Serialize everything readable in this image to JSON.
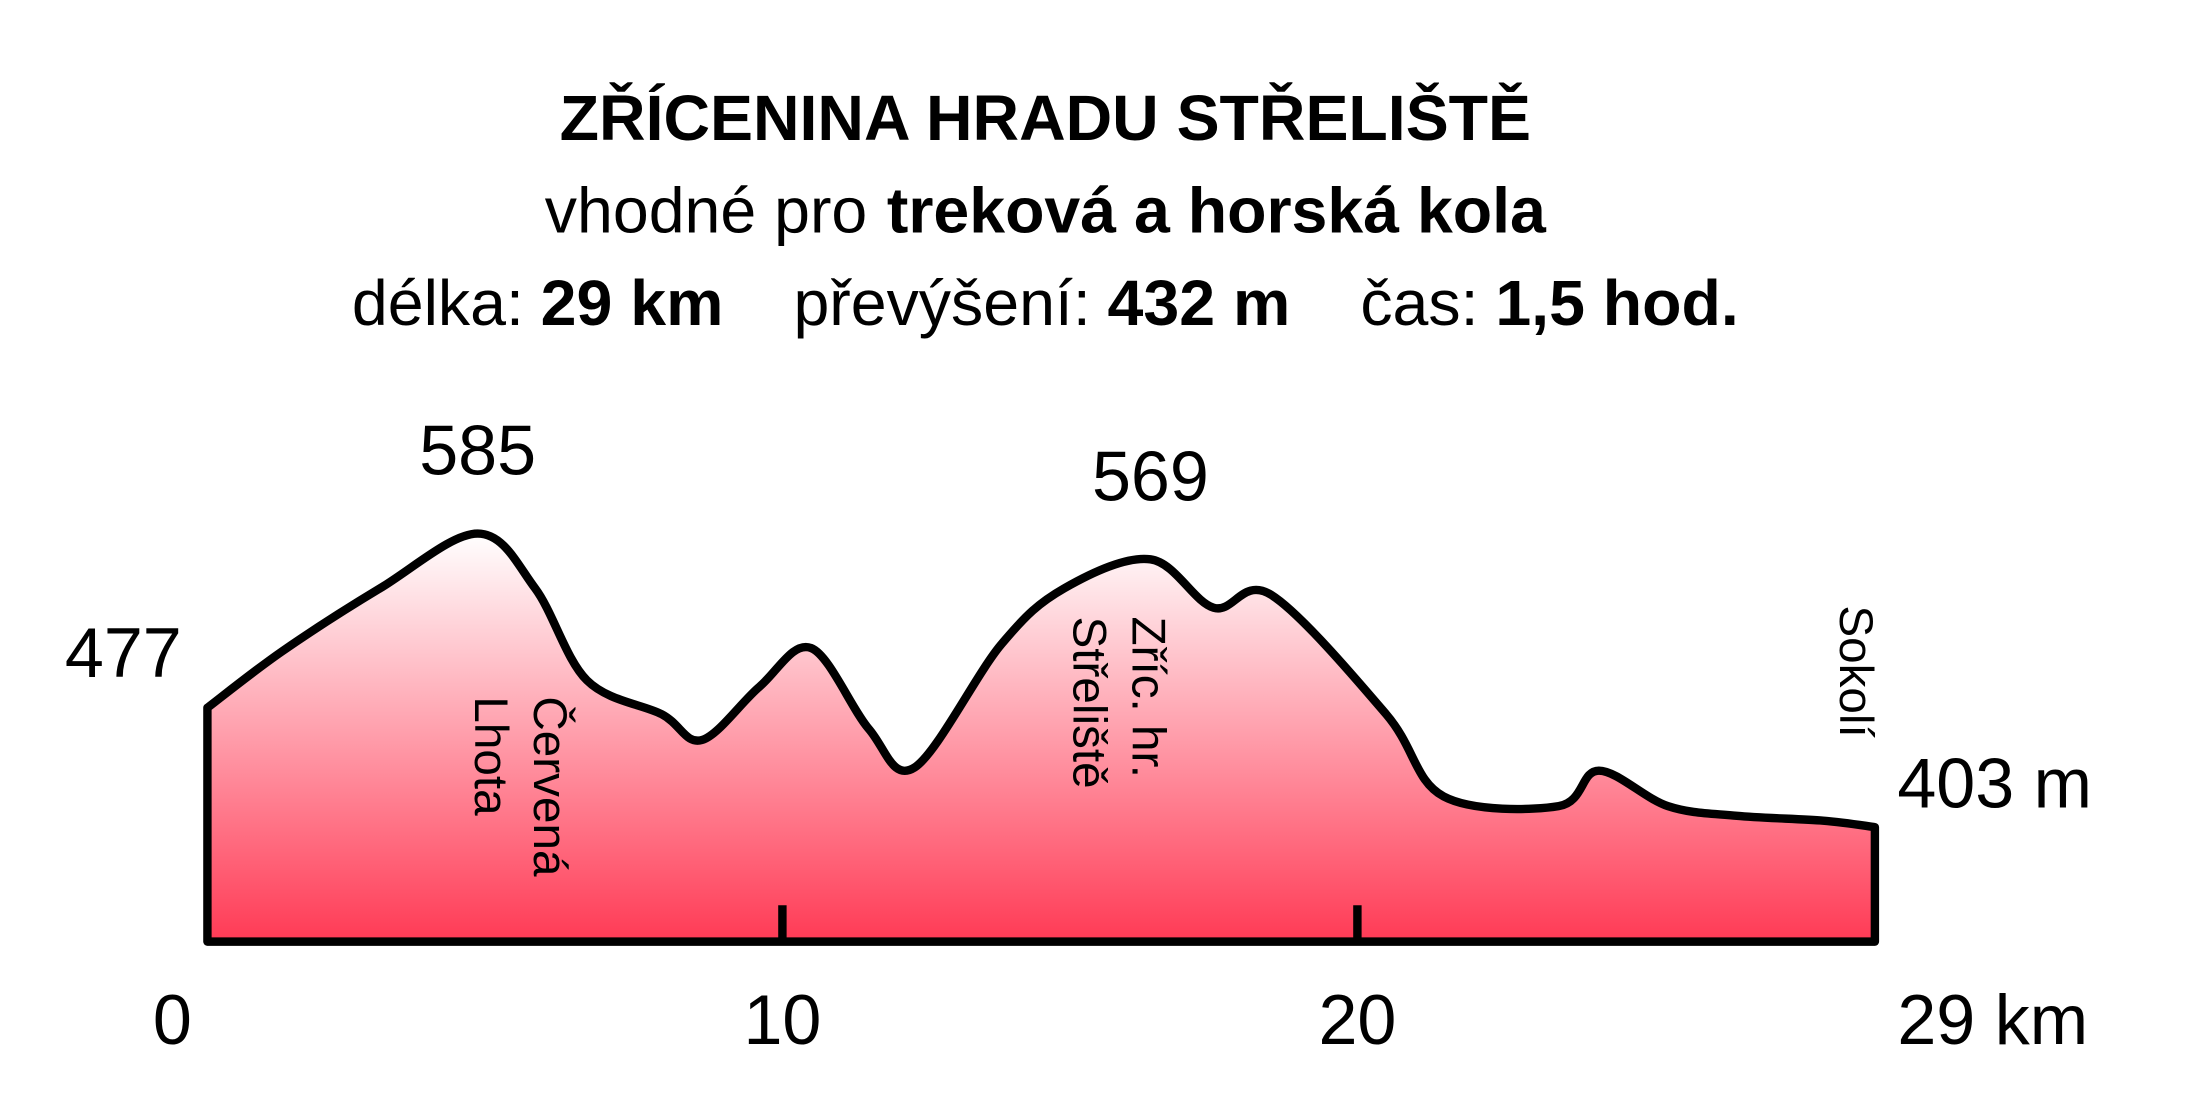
{
  "chart_data": {
    "type": "area",
    "title": "ZŘÍCENINA HRADU STŘELIŠTĚ",
    "subtitle": {
      "text": "vhodné pro",
      "bold": "treková a horská kola"
    },
    "stats": [
      {
        "label": "délka:",
        "value": "29 km"
      },
      {
        "label": "převýšení:",
        "value": "432 m"
      },
      {
        "label": "čas:",
        "value": "1,5 hod."
      }
    ],
    "x": [
      0,
      1.3,
      3,
      4.7,
      5.7,
      6.6,
      7.9,
      8.6,
      9.6,
      10.5,
      11.5,
      12.3,
      13.8,
      14.9,
      16.4,
      17.5,
      18.5,
      20.5,
      21.5,
      23.5,
      24.2,
      25.4,
      26.6,
      28.1,
      29
    ],
    "values": [
      477,
      512,
      551,
      585,
      551,
      494,
      473,
      457,
      490,
      514,
      464,
      440,
      516,
      551,
      569,
      539,
      547,
      473,
      422,
      416,
      438,
      416,
      410,
      407,
      403
    ],
    "value_labels": [
      "477",
      null,
      null,
      "585",
      null,
      null,
      null,
      null,
      null,
      null,
      null,
      null,
      null,
      null,
      "569",
      null,
      null,
      null,
      null,
      null,
      null,
      null,
      null,
      null,
      "403 m"
    ],
    "xlim": [
      0,
      29
    ],
    "xticks": [
      0,
      10,
      20,
      {
        "value": 29,
        "label": "29 km"
      }
    ],
    "ylim": [
      332,
      600
    ],
    "places": [
      {
        "lines": [
          "Červená",
          "Lhota"
        ]
      },
      {
        "lines": [
          "Zříc. hr.",
          "Střeliště"
        ]
      },
      {
        "lines": [
          "Sokolí"
        ]
      }
    ],
    "color": "#ff3a55"
  }
}
